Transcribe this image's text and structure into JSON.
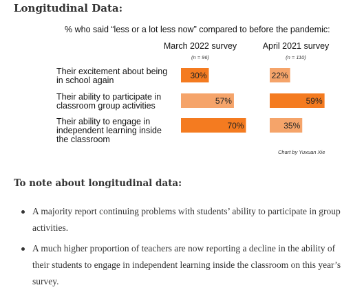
{
  "heading": "Longitudinal Data:",
  "chart_data": {
    "type": "bar",
    "orientation": "horizontal",
    "title": "% who said “less or a lot less now” compared to before the pandemic:",
    "categories": [
      "Their excitement about being in school again",
      "Their ability to participate in classroom group activities",
      "Their ability to engage in independent learning inside the classroom"
    ],
    "category_lines": [
      [
        "Their excitement about being",
        "in school again"
      ],
      [
        "Their ability to participate in",
        "classroom group activities"
      ],
      [
        "Their ability to engage in",
        "independent learning inside",
        "the classroom"
      ]
    ],
    "series": [
      {
        "name": "March 2022 survey",
        "n_label": "(n = 96)",
        "values": [
          30,
          57,
          70
        ],
        "value_labels": [
          "30%",
          "57%",
          "70%"
        ],
        "colors": [
          "#F47B20",
          "#F5A46A",
          "#F47B20"
        ]
      },
      {
        "name": "April 2021 survey",
        "n_label": "(n = 110)",
        "values": [
          22,
          59,
          35
        ],
        "value_labels": [
          "22%",
          "59%",
          "35%"
        ],
        "colors": [
          "#F5A46A",
          "#F47B20",
          "#F5A46A"
        ]
      }
    ],
    "xlim": [
      0,
      100
    ],
    "grid": false,
    "legend": "none",
    "credit": "Chart by Yuxuan Xie"
  },
  "notes": {
    "title": "To note about longitudinal data:",
    "items": [
      "A majority report continuing problems with students’ ability to participate in group activities.",
      "A much higher proportion of teachers are now reporting a decline in the ability of their students to engage in independent learning inside the classroom on this year’s survey."
    ]
  }
}
